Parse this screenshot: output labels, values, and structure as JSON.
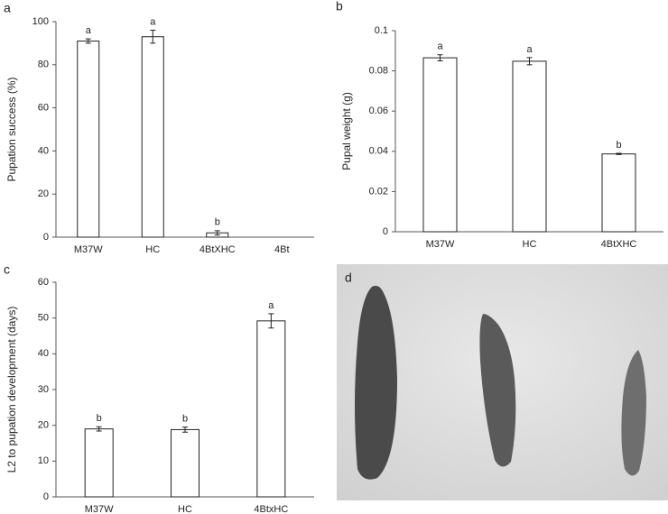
{
  "chart_data": [
    {
      "type": "bar",
      "label": "a",
      "y_label": "Pupation success (%)",
      "categories": [
        "M37W",
        "HC",
        "4BtXHC",
        "4Bt"
      ],
      "values": [
        91,
        93,
        2,
        0
      ],
      "errors": [
        1,
        3,
        1,
        null
      ],
      "letters": [
        "a",
        "a",
        "b",
        null
      ],
      "color": "#ffffff",
      "ylim": [
        0,
        100
      ],
      "yticks": [
        0,
        20,
        40,
        60,
        80,
        100
      ]
    },
    {
      "type": "bar",
      "label": "b",
      "y_label": "Pupal weight (g)",
      "categories": [
        "M37W",
        "HC",
        "4BtXHC"
      ],
      "values": [
        0.0865,
        0.0848,
        0.0387
      ],
      "errors": [
        0.0015,
        0.0018,
        0.0003
      ],
      "letters": [
        "a",
        "a",
        "b"
      ],
      "color": "#ffffff",
      "ylim": [
        0,
        0.1
      ],
      "yticks": [
        0,
        0.02,
        0.04,
        0.06,
        0.08,
        0.1
      ]
    },
    {
      "type": "bar",
      "label": "c",
      "y_label": "L2 to pupation development (days)",
      "categories": [
        "M37W",
        "HC",
        "4BtxHC"
      ],
      "values": [
        19,
        18.8,
        49.2
      ],
      "errors": [
        0.6,
        0.7,
        2
      ],
      "letters": [
        "b",
        "b",
        "a"
      ],
      "color": "#ffffff",
      "ylim": [
        0,
        60
      ],
      "yticks": [
        0,
        10,
        20,
        30,
        40,
        50,
        60
      ]
    }
  ],
  "photo": {
    "label": "d"
  }
}
